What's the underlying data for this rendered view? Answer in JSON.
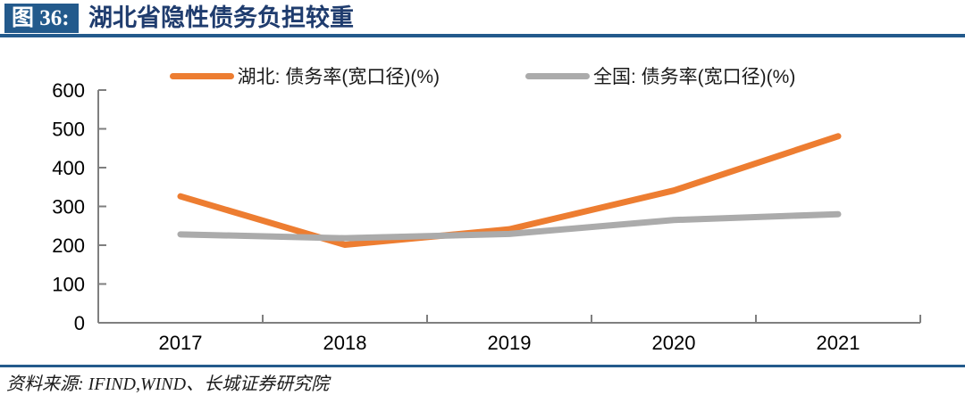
{
  "header": {
    "badge_label": "图 36:",
    "title": "湖北省隐性债务负担较重"
  },
  "footer": {
    "source_text": "资料来源: IFIND,WIND、长城证券研究院"
  },
  "colors": {
    "navy": "#235a8c",
    "navy_text": "#1f3c6e",
    "axis": "#7f7f7f",
    "tick": "#7f7f7f",
    "axis_label": "#000000",
    "hubei_orange": "#ed7d31",
    "national_gray": "#ababab"
  },
  "chart_data": {
    "type": "line",
    "categories": [
      "2017",
      "2018",
      "2019",
      "2020",
      "2021"
    ],
    "series": [
      {
        "name": "湖北: 债务率(宽口径)(%)",
        "color": "#ed7d31",
        "values": [
          326,
          201,
          241,
          341,
          481
        ]
      },
      {
        "name": "全国: 债务率(宽口径)(%)",
        "color": "#ababab",
        "values": [
          228,
          218,
          229,
          265,
          280
        ]
      }
    ],
    "title": "",
    "xlabel": "",
    "ylabel": "",
    "ylim": [
      0,
      600
    ],
    "yticks": [
      0,
      100,
      200,
      300,
      400,
      500,
      600
    ],
    "grid": false,
    "legend_position": "top"
  }
}
